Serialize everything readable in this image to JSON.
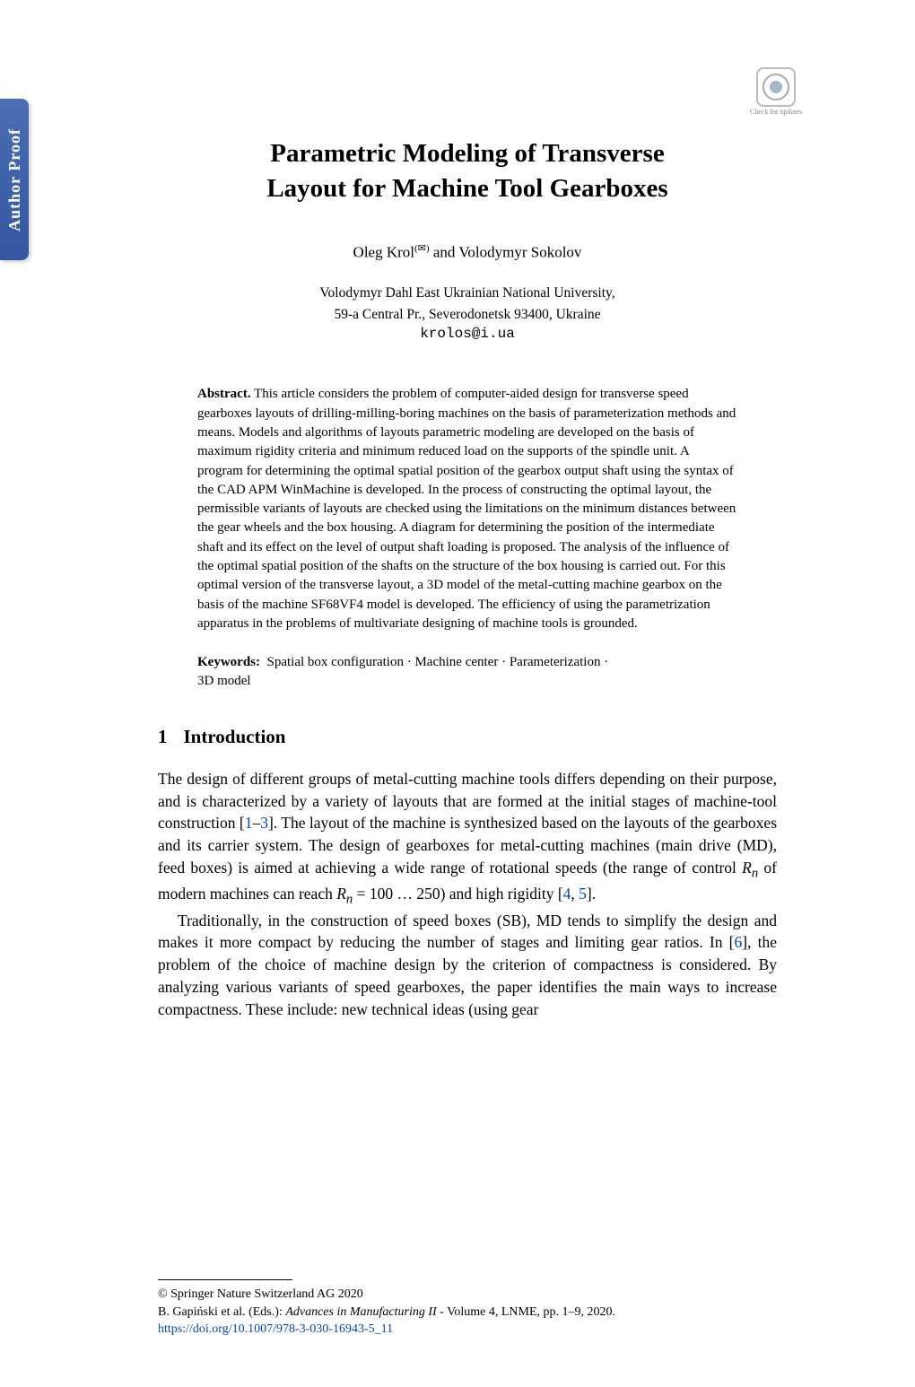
{
  "sidebar": {
    "author_proof": "Author Proof"
  },
  "badge": {
    "check_updates": "Check for\nupdates"
  },
  "title": {
    "line1": "Parametric Modeling of Transverse",
    "line2": "Layout for Machine Tool Gearboxes"
  },
  "authors": {
    "a1": "Oleg Krol",
    "sup": "(✉)",
    "joiner": " and ",
    "a2": "Volodymyr Sokolov"
  },
  "affiliation": {
    "line1": "Volodymyr Dahl East Ukrainian National University,",
    "line2": "59-a Central Pr., Severodonetsk 93400, Ukraine"
  },
  "email": "krolos@i.ua",
  "abstract": {
    "label": "Abstract.",
    "text": " This article considers the problem of computer-aided design for transverse speed gearboxes layouts of drilling-milling-boring machines on the basis of parameterization methods and means. Models and algorithms of layouts parametric modeling are developed on the basis of maximum rigidity criteria and minimum reduced load on the supports of the spindle unit. A program for determining the optimal spatial position of the gearbox output shaft using the syntax of the CAD APM WinMachine is developed. In the process of constructing the optimal layout, the permissible variants of layouts are checked using the limitations on the minimum distances between the gear wheels and the box housing. A diagram for determining the position of the intermediate shaft and its effect on the level of output shaft loading is proposed. The analysis of the influence of the optimal spatial position of the shafts on the structure of the box housing is carried out. For this optimal version of the transverse layout, a 3D model of the metal-cutting machine gearbox on the basis of the machine SF68VF4 model is developed. The efficiency of using the parametrization apparatus in the problems of multivariate designing of machine tools is grounded."
  },
  "keywords": {
    "label": "Keywords:",
    "k1": "Spatial box configuration",
    "sep": " · ",
    "k2": "Machine center",
    "k3": "Parameterization",
    "k4": "3D model"
  },
  "section1": {
    "number": "1",
    "title": "Introduction"
  },
  "body": {
    "p1a": "The design of different groups of metal-cutting machine tools differs depending on their purpose, and is characterized by a variety of layouts that are formed at the initial stages of machine-tool construction [",
    "ref1": "1",
    "dash1": "–",
    "ref3": "3",
    "p1b": "]. The layout of the machine is synthesized based on the layouts of the gearboxes and its carrier system. The design of gearboxes for metal-cutting machines (main drive (MD), feed boxes) is aimed at achieving a wide range of rotational speeds (the range of control ",
    "rn1": "R",
    "rn1sub": "n",
    "p1c": " of modern machines can reach ",
    "rn2": "R",
    "rn2sub": "n",
    "p1d": " = 100 … 250) and high rigidity [",
    "ref4": "4",
    "comma1": ", ",
    "ref5": "5",
    "p1e": "].",
    "p2a": "Traditionally, in the construction of speed boxes (SB), MD tends to simplify the design and makes it more compact by reducing the number of stages and limiting gear ratios. In [",
    "ref6": "6",
    "p2b": "], the problem of the choice of machine design by the criterion of compactness is considered. By analyzing various variants of speed gearboxes, the paper identifies the main ways to increase compactness. These include: new technical ideas (using gear"
  },
  "footer": {
    "copyright": "© Springer Nature Switzerland AG 2020",
    "editors": "B. Gapiński et al. (Eds.): ",
    "book_title": "Advances in Manufacturing II",
    "rest": " - Volume 4, LNME, pp. 1–9, 2020.",
    "doi": "https://doi.org/10.1007/978-3-030-16943-5_11"
  },
  "colors": {
    "tab_gradient_start": "#4a6db3",
    "tab_gradient_end": "#3456a0",
    "link_color": "#0645ad",
    "text_color": "#000000",
    "background": "#ffffff"
  }
}
